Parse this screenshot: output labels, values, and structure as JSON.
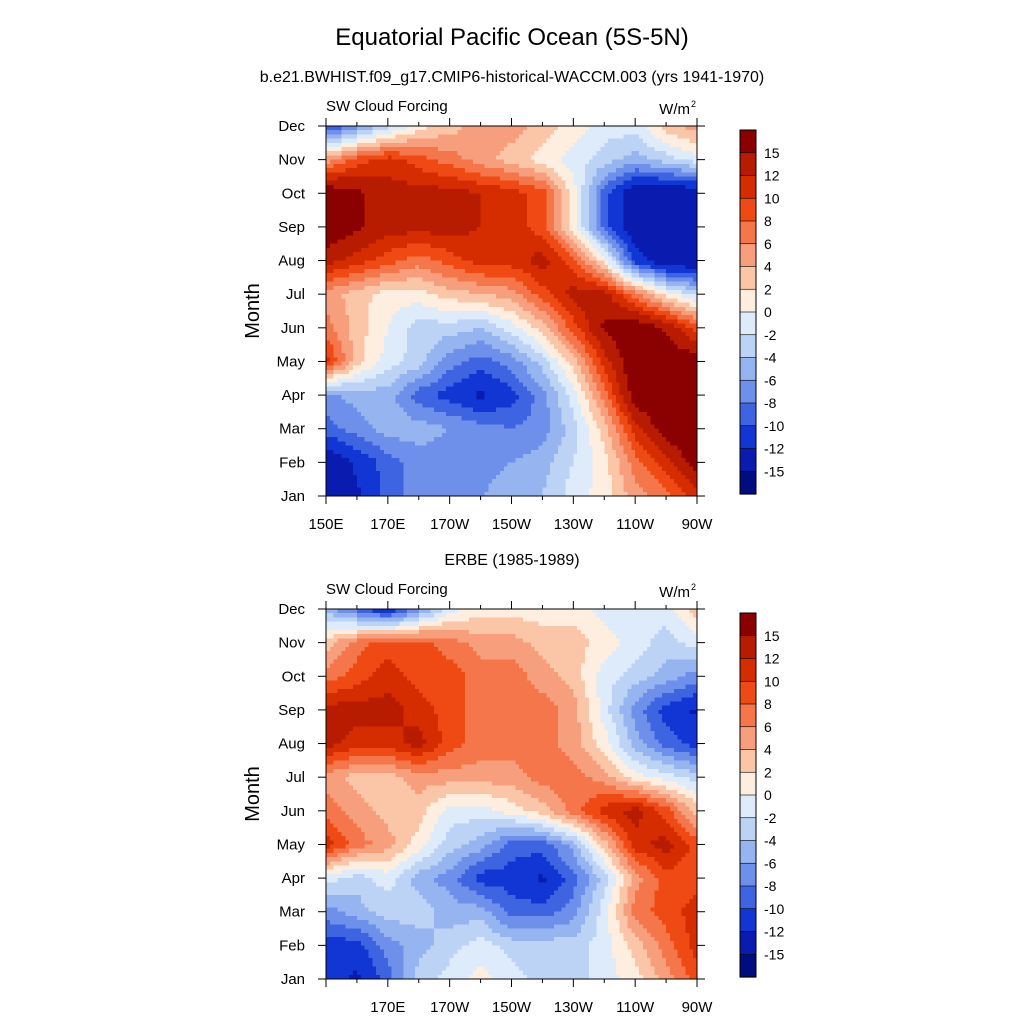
{
  "figure": {
    "title": "Equatorial Pacific Ocean (5S-5N)",
    "subtitle": "b.e21.BWHIST.f09_g17.CMIP6-historical-WACCM.003 (yrs 1941-1970)",
    "panel2_title": "ERBE (1985-1989)"
  },
  "colorbar": {
    "levels": [
      "15",
      "12",
      "10",
      "8",
      "6",
      "4",
      "2",
      "0",
      "-2",
      "-4",
      "-6",
      "-8",
      "-10",
      "-12",
      "-15"
    ],
    "colors": [
      "#8b0000",
      "#b71c00",
      "#d62d00",
      "#f04a14",
      "#f5764a",
      "#f79e7c",
      "#fbc6a8",
      "#fdeee0",
      "#deebfa",
      "#bcd3f6",
      "#96b4f0",
      "#6e90ea",
      "#3f64e2",
      "#1236d4",
      "#0a1cb0",
      "#000c80"
    ]
  },
  "chart_data": [
    {
      "type": "heatmap",
      "left_label": "SW Cloud Forcing",
      "right_label": "W/m",
      "right_label_sup": "2",
      "ylabel": "Month",
      "x_range": [
        "150E",
        "90W"
      ],
      "xtick_labels": [
        "150E",
        "170E",
        "170W",
        "150W",
        "130W",
        "110W",
        "90W"
      ],
      "y_categories": [
        "Jan",
        "Feb",
        "Mar",
        "Apr",
        "May",
        "Jun",
        "Jul",
        "Aug",
        "Sep",
        "Oct",
        "Nov",
        "Dec"
      ],
      "longitudes": [
        150,
        160,
        170,
        180,
        190,
        200,
        210,
        220,
        230,
        240,
        250,
        260,
        270
      ],
      "values": [
        [
          -16,
          -14,
          -10,
          -8,
          -8,
          -7,
          -6,
          -5,
          -2,
          0,
          4,
          6,
          10
        ],
        [
          -16,
          -13,
          -10,
          -8,
          -8,
          -8,
          -7,
          -6,
          -3,
          0,
          6,
          10,
          15
        ],
        [
          -10,
          -8,
          -6,
          -6,
          -7,
          -8,
          -9,
          -8,
          -4,
          2,
          10,
          15,
          18
        ],
        [
          -8,
          -6,
          -6,
          -10,
          -12,
          -14,
          -12,
          -8,
          -2,
          6,
          15,
          18,
          18
        ],
        [
          10,
          2,
          -2,
          -4,
          -8,
          -10,
          -8,
          -4,
          2,
          10,
          16,
          16,
          15
        ],
        [
          6,
          2,
          -1,
          -4,
          -4,
          -5,
          -2,
          2,
          8,
          14,
          16,
          13,
          8
        ],
        [
          4,
          2,
          0,
          0,
          2,
          3,
          4,
          8,
          12,
          12,
          6,
          0,
          -4
        ],
        [
          12,
          10,
          8,
          6,
          8,
          10,
          10,
          12,
          8,
          0,
          -12,
          -16,
          -16
        ],
        [
          16,
          14,
          12,
          12,
          12,
          11,
          10,
          8,
          0,
          -10,
          -16,
          -16,
          -16
        ],
        [
          16,
          14,
          12,
          12,
          12,
          11,
          10,
          8,
          0,
          -10,
          -16,
          -16,
          -16
        ],
        [
          4,
          8,
          10,
          8,
          6,
          4,
          2,
          0,
          -2,
          -4,
          -6,
          -4,
          -2
        ],
        [
          -12,
          -8,
          -4,
          0,
          2,
          4,
          4,
          2,
          0,
          -2,
          -2,
          2,
          4
        ]
      ]
    },
    {
      "type": "heatmap",
      "left_label": "SW Cloud Forcing",
      "right_label": "W/m",
      "right_label_sup": "2",
      "ylabel": "Month",
      "x_range": [
        "150E",
        "90W"
      ],
      "xtick_labels": [
        "170E",
        "170W",
        "150W",
        "130W",
        "110W",
        "90W"
      ],
      "y_categories": [
        "Jan",
        "Feb",
        "Mar",
        "Apr",
        "May",
        "Jun",
        "Jul",
        "Aug",
        "Sep",
        "Oct",
        "Nov",
        "Dec"
      ],
      "longitudes": [
        150,
        160,
        170,
        180,
        190,
        200,
        210,
        220,
        230,
        240,
        250,
        260,
        270
      ],
      "values": [
        [
          -12,
          -14,
          -10,
          -4,
          -2,
          0,
          -2,
          -4,
          -4,
          -2,
          0,
          4,
          8
        ],
        [
          -12,
          -12,
          -8,
          -6,
          -4,
          -2,
          -4,
          -4,
          -4,
          -2,
          2,
          6,
          10
        ],
        [
          -8,
          -6,
          -4,
          -4,
          -6,
          -6,
          -10,
          -10,
          -8,
          -2,
          6,
          8,
          10
        ],
        [
          -2,
          -4,
          -2,
          -6,
          -8,
          -12,
          -12,
          -14,
          -10,
          -4,
          4,
          8,
          8
        ],
        [
          10,
          6,
          4,
          0,
          -4,
          -6,
          -10,
          -10,
          -6,
          2,
          10,
          12,
          8
        ],
        [
          6,
          4,
          2,
          2,
          -2,
          -2,
          0,
          2,
          6,
          10,
          12,
          8,
          2
        ],
        [
          4,
          2,
          2,
          4,
          4,
          4,
          4,
          6,
          6,
          4,
          0,
          -2,
          -4
        ],
        [
          12,
          10,
          10,
          12,
          8,
          6,
          6,
          6,
          4,
          0,
          -6,
          -10,
          -12
        ],
        [
          12,
          12,
          12,
          10,
          8,
          6,
          6,
          6,
          4,
          -2,
          -8,
          -12,
          -14
        ],
        [
          6,
          8,
          10,
          8,
          8,
          6,
          6,
          4,
          2,
          -2,
          -4,
          -6,
          -8
        ],
        [
          2,
          6,
          8,
          8,
          6,
          4,
          4,
          2,
          2,
          0,
          -2,
          -4,
          -2
        ],
        [
          -6,
          -10,
          -14,
          -8,
          -2,
          0,
          0,
          0,
          0,
          -2,
          -2,
          -2,
          2
        ]
      ]
    }
  ]
}
